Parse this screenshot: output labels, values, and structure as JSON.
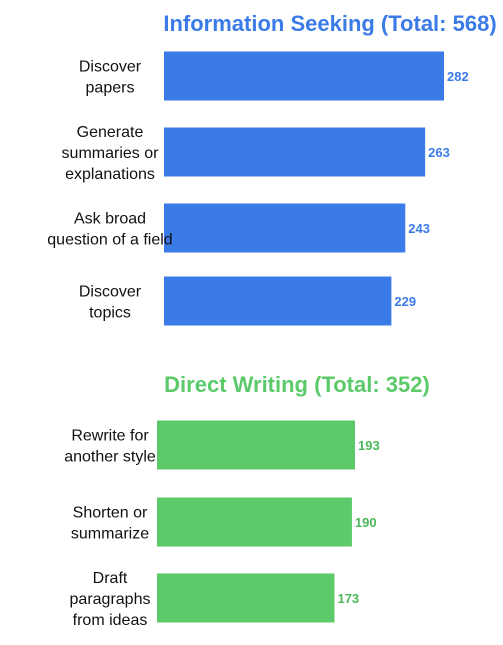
{
  "chart_data": [
    {
      "type": "bar",
      "orientation": "horizontal",
      "title": "Information Seeking (Total: 568)",
      "color": "#3b7be8",
      "label_color": "#3b7be8",
      "categories": [
        [
          "Discover",
          "papers"
        ],
        [
          "Generate",
          "summaries or",
          "explanations"
        ],
        [
          "Ask broad",
          "question of a field"
        ],
        [
          "Discover",
          "topics"
        ]
      ],
      "values": [
        282,
        263,
        243,
        229
      ],
      "data_labels": [
        "282",
        "263",
        "243",
        "229"
      ],
      "xlim": [
        0,
        282
      ],
      "grid": false,
      "xlabel": "",
      "ylabel": ""
    },
    {
      "type": "bar",
      "orientation": "horizontal",
      "title": "Direct Writing (Total: 352)",
      "color": "#5cca6a",
      "label_color": "#4cb85a",
      "categories": [
        [
          "Rewrite for",
          "another style"
        ],
        [
          "Shorten or",
          "summarize"
        ],
        [
          "Draft",
          "paragraphs",
          "from ideas"
        ]
      ],
      "values": [
        193,
        190,
        173
      ],
      "data_labels": [
        "193",
        "190",
        "173"
      ],
      "xlim": [
        0,
        193
      ],
      "grid": false,
      "xlabel": "",
      "ylabel": ""
    }
  ]
}
